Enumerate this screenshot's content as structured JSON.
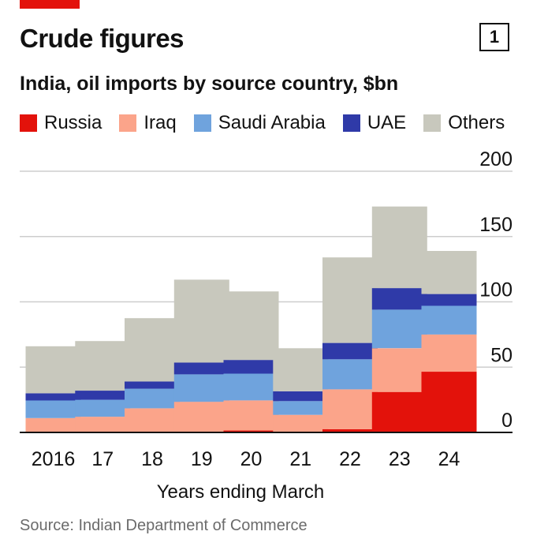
{
  "header": {
    "title": "Crude figures",
    "badge": "1",
    "subtitle": "India, oil imports by source country, $bn"
  },
  "legend": [
    {
      "label": "Russia",
      "color": "#e3120b"
    },
    {
      "label": "Iraq",
      "color": "#fba48a"
    },
    {
      "label": "Saudi Arabia",
      "color": "#6fa3dd"
    },
    {
      "label": "UAE",
      "color": "#2f3aa8"
    },
    {
      "label": "Others",
      "color": "#c8c8bd"
    }
  ],
  "chart_data": {
    "type": "bar",
    "stacked": true,
    "categories": [
      "2016",
      "17",
      "18",
      "19",
      "20",
      "21",
      "22",
      "23",
      "24"
    ],
    "series": [
      {
        "name": "Russia",
        "color": "#e3120b",
        "values": [
          0.5,
          0.5,
          0.5,
          0.5,
          1.5,
          0.5,
          2.5,
          31,
          46.5
        ]
      },
      {
        "name": "Iraq",
        "color": "#fba48a",
        "values": [
          10.5,
          11.5,
          18,
          23,
          23,
          13,
          30.5,
          33.5,
          28.5
        ]
      },
      {
        "name": "Saudi Arabia",
        "color": "#6fa3dd",
        "values": [
          13.5,
          13,
          15,
          21,
          20.5,
          10.5,
          23,
          29.5,
          22
        ]
      },
      {
        "name": "UAE",
        "color": "#2f3aa8",
        "values": [
          5.5,
          7,
          5.5,
          9,
          10.5,
          7.5,
          12.5,
          16.5,
          9
        ]
      },
      {
        "name": "Others",
        "color": "#c8c8bd",
        "values": [
          36,
          38,
          48.5,
          63.5,
          52.5,
          33,
          65.5,
          62.5,
          33
        ]
      }
    ],
    "ylim": [
      0,
      200
    ],
    "yticks": [
      0,
      50,
      100,
      150,
      200
    ],
    "xlabel": "Years ending March",
    "ylabel": "",
    "grid": true
  },
  "footer": {
    "source": "Source: Indian Department of Commerce"
  }
}
